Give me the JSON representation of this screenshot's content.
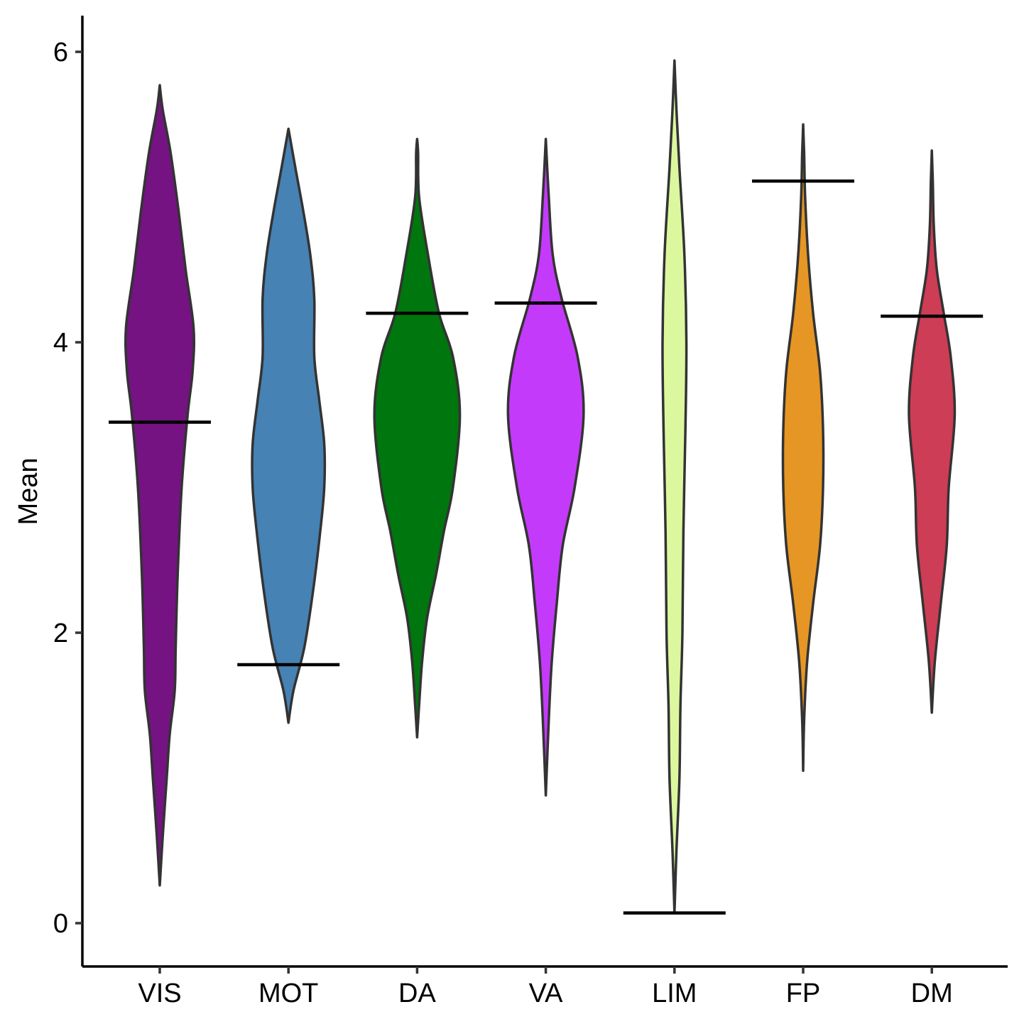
{
  "chart_data": {
    "type": "violin",
    "title": "",
    "xlabel": "",
    "ylabel": "Mean",
    "ylim": [
      -0.3,
      6.25
    ],
    "yticks": [
      0,
      2,
      4,
      6
    ],
    "yticklabels": [
      "0",
      "2",
      "4",
      "6"
    ],
    "categories": [
      "VIS",
      "MOT",
      "DA",
      "VA",
      "LIM",
      "FP",
      "DM"
    ],
    "series": [
      {
        "name": "VIS",
        "color": "#751383",
        "marker": 3.45,
        "profile": [
          [
            0.26,
            0
          ],
          [
            0.6,
            0.03
          ],
          [
            1.0,
            0.07
          ],
          [
            1.3,
            0.1
          ],
          [
            1.6,
            0.15
          ],
          [
            1.9,
            0.16
          ],
          [
            2.4,
            0.18
          ],
          [
            3.0,
            0.22
          ],
          [
            3.5,
            0.28
          ],
          [
            3.8,
            0.33
          ],
          [
            4.1,
            0.34
          ],
          [
            4.5,
            0.26
          ],
          [
            4.9,
            0.19
          ],
          [
            5.3,
            0.11
          ],
          [
            5.6,
            0.03
          ],
          [
            5.77,
            0
          ]
        ]
      },
      {
        "name": "MOT",
        "color": "#4682B4",
        "marker": 1.78,
        "profile": [
          [
            1.38,
            0
          ],
          [
            1.6,
            0.05
          ],
          [
            1.9,
            0.16
          ],
          [
            2.3,
            0.25
          ],
          [
            2.7,
            0.32
          ],
          [
            3.0,
            0.36
          ],
          [
            3.3,
            0.36
          ],
          [
            3.6,
            0.31
          ],
          [
            3.9,
            0.26
          ],
          [
            4.3,
            0.26
          ],
          [
            4.6,
            0.22
          ],
          [
            4.9,
            0.15
          ],
          [
            5.2,
            0.07
          ],
          [
            5.47,
            0
          ]
        ]
      },
      {
        "name": "DA",
        "color": "#00760E",
        "marker": 4.2,
        "profile": [
          [
            1.28,
            0
          ],
          [
            1.5,
            0.02
          ],
          [
            1.8,
            0.05
          ],
          [
            2.1,
            0.1
          ],
          [
            2.4,
            0.19
          ],
          [
            2.7,
            0.27
          ],
          [
            3.0,
            0.36
          ],
          [
            3.5,
            0.43
          ],
          [
            3.9,
            0.36
          ],
          [
            4.2,
            0.22
          ],
          [
            4.6,
            0.11
          ],
          [
            5.0,
            0.02
          ],
          [
            5.3,
            0.01
          ],
          [
            5.4,
            0
          ]
        ]
      },
      {
        "name": "VA",
        "color": "#C43AFA",
        "marker": 4.27,
        "profile": [
          [
            0.88,
            0
          ],
          [
            1.4,
            0.03
          ],
          [
            1.8,
            0.06
          ],
          [
            2.2,
            0.11
          ],
          [
            2.6,
            0.17
          ],
          [
            3.0,
            0.29
          ],
          [
            3.5,
            0.38
          ],
          [
            3.9,
            0.32
          ],
          [
            4.3,
            0.16
          ],
          [
            4.6,
            0.07
          ],
          [
            5.0,
            0.03
          ],
          [
            5.4,
            0
          ]
        ]
      },
      {
        "name": "LIM",
        "color": "#DCF89F",
        "marker": 0.07,
        "profile": [
          [
            0.07,
            0
          ],
          [
            0.5,
            0.02
          ],
          [
            1.0,
            0.05
          ],
          [
            1.5,
            0.06
          ],
          [
            2.0,
            0.08
          ],
          [
            2.7,
            0.09
          ],
          [
            3.4,
            0.11
          ],
          [
            4.0,
            0.12
          ],
          [
            4.6,
            0.1
          ],
          [
            5.2,
            0.05
          ],
          [
            5.6,
            0.02
          ],
          [
            5.94,
            0
          ]
        ]
      },
      {
        "name": "FP",
        "color": "#E69624",
        "marker": 5.11,
        "profile": [
          [
            1.05,
            0
          ],
          [
            1.4,
            0.01
          ],
          [
            1.8,
            0.04
          ],
          [
            2.2,
            0.1
          ],
          [
            2.6,
            0.17
          ],
          [
            3.0,
            0.2
          ],
          [
            3.4,
            0.2
          ],
          [
            3.8,
            0.17
          ],
          [
            4.2,
            0.1
          ],
          [
            4.6,
            0.05
          ],
          [
            5.0,
            0.02
          ],
          [
            5.3,
            0.01
          ],
          [
            5.5,
            0
          ]
        ]
      },
      {
        "name": "DM",
        "color": "#CD3D55",
        "marker": 4.18,
        "profile": [
          [
            1.45,
            0
          ],
          [
            1.8,
            0.03
          ],
          [
            2.2,
            0.09
          ],
          [
            2.6,
            0.15
          ],
          [
            3.0,
            0.17
          ],
          [
            3.5,
            0.23
          ],
          [
            3.9,
            0.19
          ],
          [
            4.2,
            0.12
          ],
          [
            4.5,
            0.05
          ],
          [
            4.8,
            0.02
          ],
          [
            5.1,
            0.01
          ],
          [
            5.32,
            0
          ]
        ]
      }
    ]
  }
}
